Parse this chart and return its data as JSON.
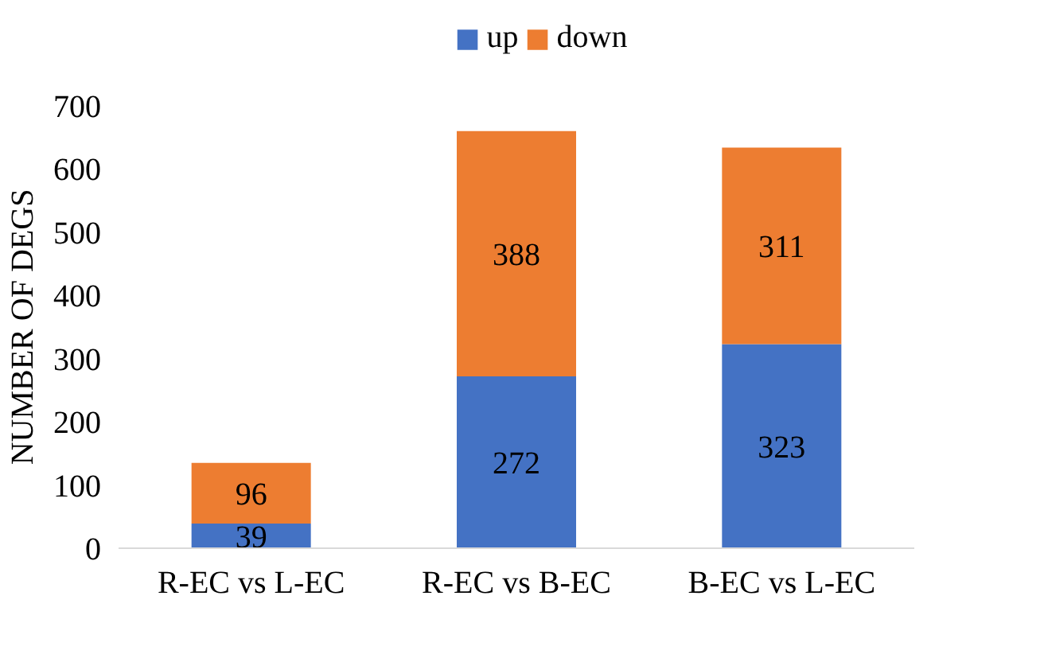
{
  "chart_data": {
    "type": "bar",
    "stacked": true,
    "ylabel": "NUMBER OF DEGS",
    "categories": [
      "R-EC vs L-EC",
      "R-EC vs B-EC",
      "B-EC vs L-EC"
    ],
    "series": [
      {
        "name": "up",
        "color": "#4472c4",
        "values": [
          39,
          272,
          323
        ]
      },
      {
        "name": "down",
        "color": "#ed7d31",
        "values": [
          96,
          388,
          311
        ]
      }
    ],
    "ylim": [
      0,
      700
    ],
    "yticks": [
      0,
      100,
      200,
      300,
      400,
      500,
      600,
      700
    ],
    "data_labels": true,
    "legend": "top",
    "grid": false
  }
}
